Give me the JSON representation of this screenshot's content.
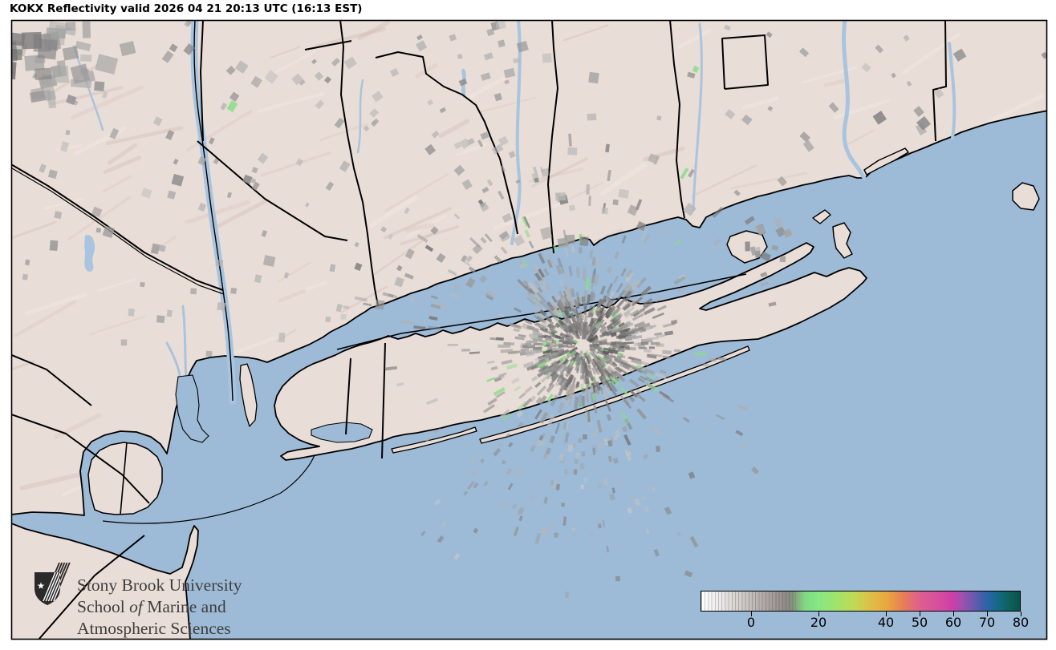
{
  "title": "KOKX Reflectivity valid 2026 04 21 20:13 UTC (16:13 EST)",
  "colorbar": {
    "min_value": -15,
    "max_value": 80,
    "ticks": [
      {
        "value": 0,
        "label": "0"
      },
      {
        "value": 20,
        "label": "20"
      },
      {
        "value": 40,
        "label": "40"
      },
      {
        "value": 50,
        "label": "50"
      },
      {
        "value": 60,
        "label": "60"
      },
      {
        "value": 70,
        "label": "70"
      },
      {
        "value": 80,
        "label": "80"
      }
    ],
    "stops": [
      [
        -15,
        "#ffffff"
      ],
      [
        -10,
        "#eeecec"
      ],
      [
        -5,
        "#d9d5d3"
      ],
      [
        0,
        "#c2bcba"
      ],
      [
        5,
        "#aaa3a1"
      ],
      [
        10,
        "#918b89"
      ],
      [
        12,
        "#86927f"
      ],
      [
        16,
        "#82d983"
      ],
      [
        20,
        "#86e783"
      ],
      [
        25,
        "#9fe36b"
      ],
      [
        30,
        "#bedb57"
      ],
      [
        35,
        "#dcc04a"
      ],
      [
        40,
        "#e8a93e"
      ],
      [
        45,
        "#e77f55"
      ],
      [
        50,
        "#de5f8e"
      ],
      [
        55,
        "#d8519c"
      ],
      [
        60,
        "#cc3fa8"
      ],
      [
        63,
        "#9b51ae"
      ],
      [
        66,
        "#6f58ad"
      ],
      [
        70,
        "#2f63a8"
      ],
      [
        73,
        "#17698c"
      ],
      [
        76,
        "#0f6465"
      ],
      [
        80,
        "#0a5347"
      ]
    ]
  },
  "logo": {
    "line1": "Stony Brook University",
    "line2_pre": "School ",
    "line2_italic": "of",
    "line2_post": " Marine and",
    "line3": "Atmospheric Sciences",
    "text_color": "#3e3d3d",
    "shield_color": "#2b2a2a"
  },
  "map": {
    "station_id": "KOKX",
    "water_color": "#9dbbd7",
    "land_color": "#e9ddd7",
    "river_color": "#a9c4de",
    "terrain_shade_colors": [
      "#d9c4bb",
      "#f2e7e1",
      "#cdb6ac"
    ],
    "coast_color": "#000000",
    "boundary_color": "#000000",
    "clutter_gray_dark": "#555555",
    "clutter_gray_light": "#c8c8c8",
    "clutter_green": "#8ade85",
    "clutter_tan": "#c8b49e",
    "background_color": "#ffffff"
  }
}
